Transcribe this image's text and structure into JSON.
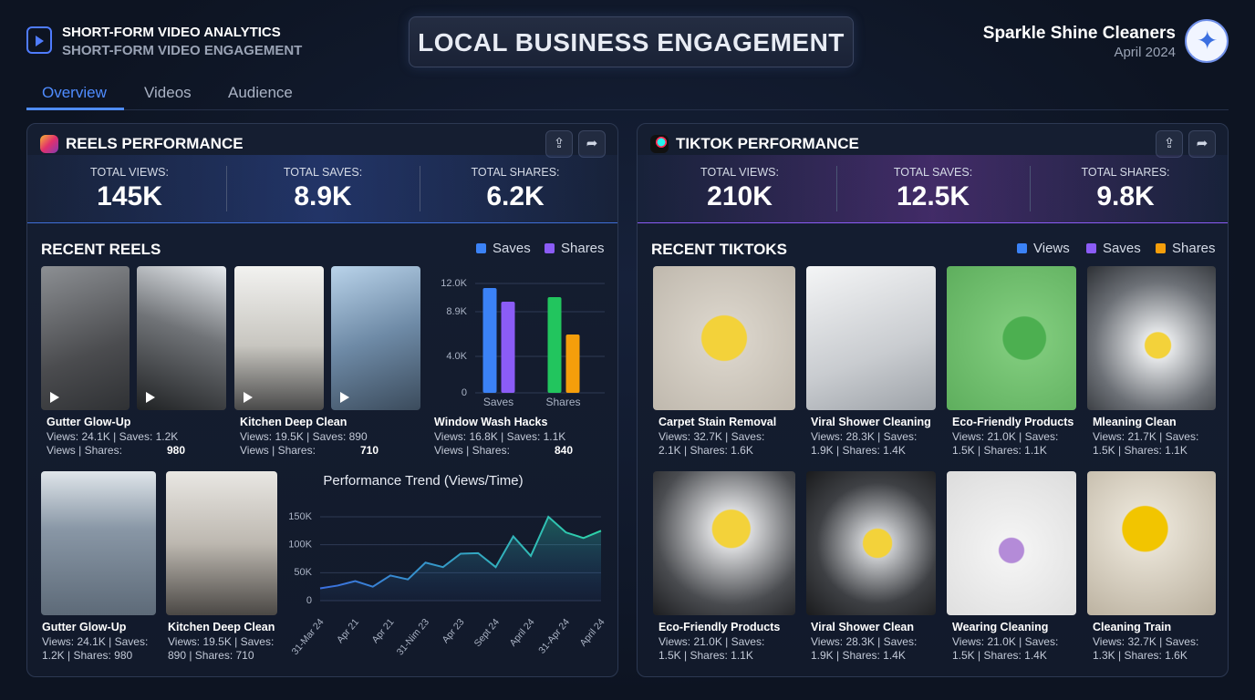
{
  "header": {
    "app_title": "SHORT-FORM VIDEO ANALYTICS",
    "app_subtitle": "SHORT-FORM VIDEO ENGAGEMENT",
    "title": "LOCAL BUSINESS ENGAGEMENT",
    "business": "Sparkle Shine Cleaners",
    "date": "April 2024"
  },
  "tabs": [
    "Overview",
    "Videos",
    "Audience"
  ],
  "reels": {
    "title": "REELS PERFORMANCE",
    "stats": [
      {
        "label": "TOTAL VIEWS:",
        "value": "145K"
      },
      {
        "label": "TOTAL SAVES:",
        "value": "8.9K"
      },
      {
        "label": "TOTAL SHARES:",
        "value": "6.2K"
      }
    ],
    "recent_title": "RECENT REELS",
    "videos": [
      {
        "title": "Gutter Glow-Up",
        "lines": [
          "Views: 24.1K | Saves: 1.2K",
          "Views |  Shares:"
        ],
        "extra": "980"
      },
      {
        "title": "Kitchen Deep Clean",
        "lines": [
          "Views: 19.5K | Saves: 890",
          "Views |  Shares:"
        ],
        "extra": "710"
      },
      {
        "title": "Window Wash Hacks",
        "lines": [
          "Views: 16.8K | Saves: 1.1K",
          "Views |  Shares:"
        ],
        "extra": "840"
      },
      {
        "title": "Gutter Glow-Up",
        "lines": [
          "Views: 24.1K | Saves:",
          "1.2K | Shares: 980"
        ]
      },
      {
        "title": "Kitchen Deep Clean",
        "lines": [
          "Views: 19.5K | Saves:",
          "890 | Shares: 710"
        ]
      }
    ]
  },
  "tiktok": {
    "title": "TIKTOK PERFORMANCE",
    "stats": [
      {
        "label": "TOTAL VIEWS:",
        "value": "210K"
      },
      {
        "label": "TOTAL SAVES:",
        "value": "12.5K"
      },
      {
        "label": "TOTAL SHARES:",
        "value": "9.8K"
      }
    ],
    "recent_title": "RECENT TIKTOKS",
    "legend": [
      {
        "name": "Views",
        "color": "#3b82f6"
      },
      {
        "name": "Saves",
        "color": "#8b5cf6"
      },
      {
        "name": "Shares",
        "color": "#f59e0b"
      }
    ],
    "videos": [
      {
        "title": "Carpet Stain Removal",
        "lines": [
          "Views: 32.7K | Saves:",
          "2.1K | Shares: 1.6K"
        ]
      },
      {
        "title": "Viral Shower Cleaning",
        "lines": [
          "Views: 28.3K | Saves:",
          "1.9K | Shares: 1.4K"
        ]
      },
      {
        "title": "Eco-Friendly Products",
        "lines": [
          "Views: 21.0K | Saves:",
          "1.5K | Shares: 1.1K"
        ]
      },
      {
        "title": "Mleaning Clean",
        "lines": [
          "Views: 21.7K | Saves:",
          "1.5K | Shares: 1.1K"
        ]
      },
      {
        "title": "Eco-Friendly Products",
        "lines": [
          "Views: 21.0K | Saves:",
          "1.5K | Shares: 1.1K"
        ]
      },
      {
        "title": "Viral Shower Clean",
        "lines": [
          "Views: 28.3K | Saves:",
          "1.9K | Shares: 1.4K"
        ]
      },
      {
        "title": "Wearing Cleaning",
        "lines": [
          "Views: 21.0K | Saves:",
          "1.5K | Shares: 1.4K"
        ]
      },
      {
        "title": "Cleaning Train",
        "lines": [
          "Views: 32.7K | Saves:",
          "1.3K | Shares: 1.6K"
        ]
      }
    ]
  },
  "chart_data": [
    {
      "type": "bar",
      "categories": [
        "Saves",
        "Shares"
      ],
      "series": [
        {
          "name": "Saves",
          "color": "#3b82f6",
          "colors": [
            "#3b82f6",
            "#22c55e"
          ],
          "values": [
            11500,
            10500
          ]
        },
        {
          "name": "Shares",
          "color": "#8b5cf6",
          "colors": [
            "#8b5cf6",
            "#f59e0b"
          ],
          "values": [
            10000,
            6400
          ]
        }
      ],
      "ylim": [
        0,
        12000
      ],
      "yticks": [
        0,
        {
          "value": 4000,
          "label": "4.0K"
        },
        {
          "value": 8900,
          "label": "8.9K"
        },
        {
          "value": 12000,
          "label": "12.0K"
        }
      ],
      "grid": true
    },
    {
      "type": "line",
      "title": "Performance Trend (Views/Time)",
      "categories": [
        "31-Mar 24",
        null,
        "Apr 21",
        null,
        "Apr 21",
        null,
        "31-Nim 23",
        null,
        "Apr 23",
        null,
        "Sept 24",
        null,
        "April 24",
        null,
        "31-Apr 24",
        null,
        "April 24"
      ],
      "values": [
        22000,
        27000,
        35000,
        25000,
        45000,
        38000,
        68000,
        60000,
        84000,
        85000,
        60000,
        115000,
        80000,
        150000,
        122000,
        112000,
        125000
      ],
      "colors": [
        "#3b6fe0",
        "#2dd4a8"
      ],
      "ylim": [
        0,
        150000
      ],
      "yticks": [
        0,
        {
          "value": 50000,
          "label": "50K"
        },
        {
          "value": 100000,
          "label": "100K"
        },
        {
          "value": 150000,
          "label": "150K"
        }
      ],
      "grid": true
    }
  ]
}
